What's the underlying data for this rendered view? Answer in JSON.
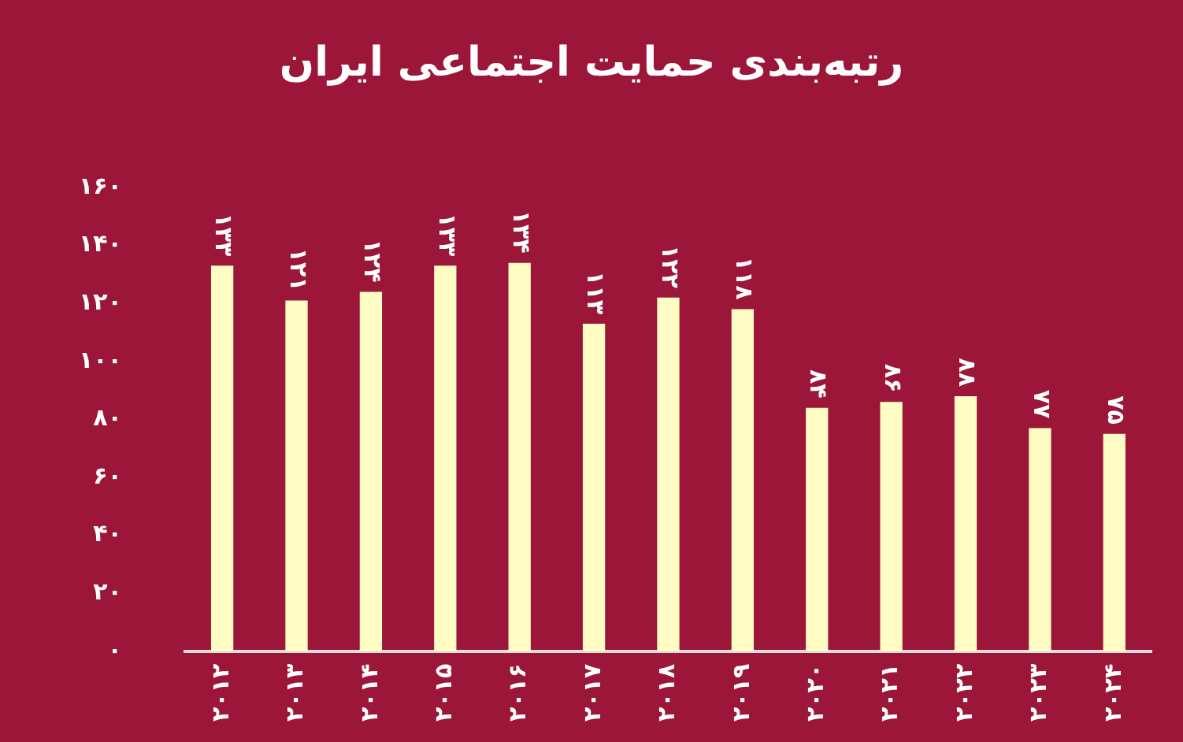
{
  "chart_data": {
    "type": "bar",
    "title": "رتبه‌بندی حمایت اجتماعی ایران",
    "categories": [
      "۲۰۱۲",
      "۲۰۱۳",
      "۲۰۱۴",
      "۲۰۱۵",
      "۲۰۱۶",
      "۲۰۱۷",
      "۲۰۱۸",
      "۲۰۱۹",
      "۲۰۲۰",
      "۲۰۲۱",
      "۲۰۲۲",
      "۲۰۲۳",
      "۲۰۲۴"
    ],
    "values": [
      133,
      121,
      124,
      133,
      134,
      113,
      122,
      118,
      84,
      86,
      88,
      77,
      75
    ],
    "value_labels": [
      "۱۳۳",
      "۱۲۱",
      "۱۲۴",
      "۱۳۳",
      "۱۳۴",
      "۱۱۳",
      "۱۲۲",
      "۱۱۸",
      "۸۴",
      "۸۶",
      "۸۸",
      "۷۷",
      "۷۵"
    ],
    "color": "#fffcc4",
    "ylim": [
      0,
      160
    ],
    "yticks": [
      {
        "value": 0,
        "label": "۰"
      },
      {
        "value": 20,
        "label": "۲۰"
      },
      {
        "value": 40,
        "label": "۴۰"
      },
      {
        "value": 60,
        "label": "۶۰"
      },
      {
        "value": 80,
        "label": "۸۰"
      },
      {
        "value": 100,
        "label": "۱۰۰"
      },
      {
        "value": 120,
        "label": "۱۲۰"
      },
      {
        "value": 140,
        "label": "۱۴۰"
      },
      {
        "value": 160,
        "label": "۱۶۰"
      }
    ],
    "grid": false,
    "legend": false
  }
}
